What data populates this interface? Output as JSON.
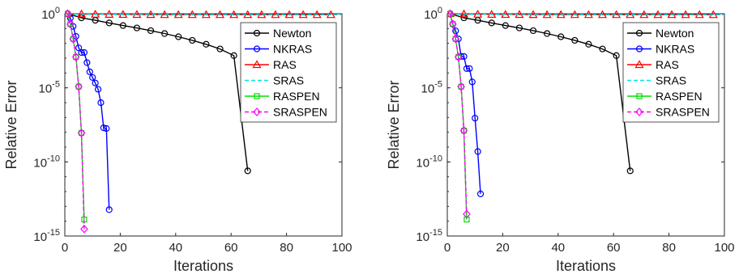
{
  "chart_data": [
    {
      "type": "line",
      "xlabel": "Iterations",
      "ylabel": "Relative Error",
      "xscale": "linear",
      "yscale": "log",
      "xlim": [
        0,
        100
      ],
      "ylim_exp": [
        -15,
        0
      ],
      "xticks": [
        0,
        20,
        40,
        60,
        80,
        100
      ],
      "yticks": [
        {
          "base": "10",
          "exp": "0",
          "value_exp": 0
        },
        {
          "base": "10",
          "exp": "-5",
          "value_exp": -5
        },
        {
          "base": "10",
          "exp": "-10",
          "value_exp": -10
        },
        {
          "base": "10",
          "exp": "-15",
          "value_exp": -15
        }
      ],
      "legend_position": "top-right",
      "grid": false,
      "series": [
        {
          "name": "Newton",
          "color": "#000000",
          "marker": "circle",
          "dash": "solid",
          "x": [
            1,
            6,
            11,
            16,
            21,
            26,
            31,
            36,
            41,
            46,
            51,
            56,
            61,
            66
          ],
          "y": [
            1,
            0.53,
            0.36,
            0.24,
            0.16,
            0.11,
            0.072,
            0.046,
            0.028,
            0.016,
            0.0087,
            0.0042,
            0.0015,
            2.5e-11
          ]
        },
        {
          "name": "NKRAS",
          "color": "#0000ff",
          "marker": "circle",
          "dash": "solid",
          "x": [
            1,
            2,
            3,
            4,
            5,
            6,
            7,
            8,
            9,
            10,
            11,
            12,
            13,
            14,
            15,
            16
          ],
          "y": [
            1,
            0.5,
            0.14,
            0.03,
            0.005,
            0.0024,
            0.0024,
            0.0005,
            0.00012,
            5e-05,
            2.1e-05,
            8e-06,
            1e-06,
            2e-08,
            1.8e-08,
            6e-14
          ]
        },
        {
          "name": "RAS",
          "color": "#ff0000",
          "marker": "triangle",
          "dash": "solid",
          "x": [
            1,
            6,
            11,
            16,
            21,
            26,
            31,
            36,
            41,
            46,
            51,
            56,
            61,
            66,
            71,
            76,
            81,
            86,
            91,
            96
          ],
          "y": [
            1,
            0.95,
            0.92,
            0.9,
            0.89,
            0.88,
            0.87,
            0.86,
            0.86,
            0.86,
            0.86,
            0.86,
            0.86,
            0.86,
            0.86,
            0.86,
            0.86,
            0.86,
            0.86,
            0.86
          ]
        },
        {
          "name": "SRAS",
          "color": "#00e5ee",
          "marker": "none",
          "dash": "dashed",
          "x": [
            1,
            100
          ],
          "y": [
            0.9,
            0.86
          ]
        },
        {
          "name": "RASPEN",
          "color": "#00dd00",
          "marker": "square",
          "dash": "solid",
          "x": [
            1,
            2,
            3,
            4,
            5,
            6,
            7
          ],
          "y": [
            1,
            0.2,
            0.02,
            0.0012,
            1.2e-05,
            9e-09,
            1.3e-14
          ]
        },
        {
          "name": "SRASPEN",
          "color": "#ff00ff",
          "marker": "diamond",
          "dash": "dashed",
          "x": [
            1,
            2,
            3,
            4,
            5,
            6,
            7
          ],
          "y": [
            1,
            0.2,
            0.02,
            0.0012,
            1.2e-05,
            9e-09,
            3e-15
          ]
        }
      ]
    },
    {
      "type": "line",
      "xlabel": "Iterations",
      "ylabel": "Relative Error",
      "xscale": "linear",
      "yscale": "log",
      "xlim": [
        0,
        100
      ],
      "ylim_exp": [
        -15,
        0
      ],
      "xticks": [
        0,
        20,
        40,
        60,
        80,
        100
      ],
      "yticks": [
        {
          "base": "10",
          "exp": "0",
          "value_exp": 0
        },
        {
          "base": "10",
          "exp": "-5",
          "value_exp": -5
        },
        {
          "base": "10",
          "exp": "-10",
          "value_exp": -10
        },
        {
          "base": "10",
          "exp": "-15",
          "value_exp": -15
        }
      ],
      "legend_position": "top-right",
      "grid": false,
      "series": [
        {
          "name": "Newton",
          "color": "#000000",
          "marker": "circle",
          "dash": "solid",
          "x": [
            1,
            6,
            11,
            16,
            21,
            26,
            31,
            36,
            41,
            46,
            51,
            56,
            61,
            66
          ],
          "y": [
            1,
            0.53,
            0.36,
            0.24,
            0.16,
            0.11,
            0.072,
            0.046,
            0.028,
            0.016,
            0.0087,
            0.0042,
            0.0015,
            2.5e-11
          ]
        },
        {
          "name": "NKRAS",
          "color": "#0000ff",
          "marker": "circle",
          "dash": "solid",
          "x": [
            1,
            2,
            3,
            4,
            5,
            6,
            7,
            8,
            9,
            10,
            11,
            12
          ],
          "y": [
            1,
            0.2,
            0.07,
            0.02,
            0.0013,
            0.0013,
            0.0002,
            0.0002,
            2.5e-05,
            9e-08,
            5e-10,
            7e-13
          ]
        },
        {
          "name": "RAS",
          "color": "#ff0000",
          "marker": "triangle",
          "dash": "solid",
          "x": [
            1,
            6,
            11,
            16,
            21,
            26,
            31,
            36,
            41,
            46,
            51,
            56,
            61,
            66,
            71,
            76,
            81,
            86,
            91,
            96
          ],
          "y": [
            1,
            0.95,
            0.92,
            0.9,
            0.89,
            0.88,
            0.87,
            0.86,
            0.86,
            0.86,
            0.86,
            0.86,
            0.86,
            0.86,
            0.86,
            0.86,
            0.86,
            0.86,
            0.86,
            0.86
          ]
        },
        {
          "name": "SRAS",
          "color": "#00e5ee",
          "marker": "none",
          "dash": "dashed",
          "x": [
            1,
            100
          ],
          "y": [
            0.9,
            0.86
          ]
        },
        {
          "name": "RASPEN",
          "color": "#00dd00",
          "marker": "square",
          "dash": "solid",
          "x": [
            1,
            2,
            3,
            4,
            5,
            6,
            7
          ],
          "y": [
            1,
            0.2,
            0.02,
            0.0012,
            1.2e-05,
            1.3e-08,
            1.3e-14
          ]
        },
        {
          "name": "SRASPEN",
          "color": "#ff00ff",
          "marker": "diamond",
          "dash": "dashed",
          "x": [
            1,
            2,
            3,
            4,
            5,
            6,
            7
          ],
          "y": [
            1,
            0.2,
            0.02,
            0.0012,
            1.2e-05,
            1.3e-08,
            3e-14
          ]
        }
      ]
    }
  ]
}
